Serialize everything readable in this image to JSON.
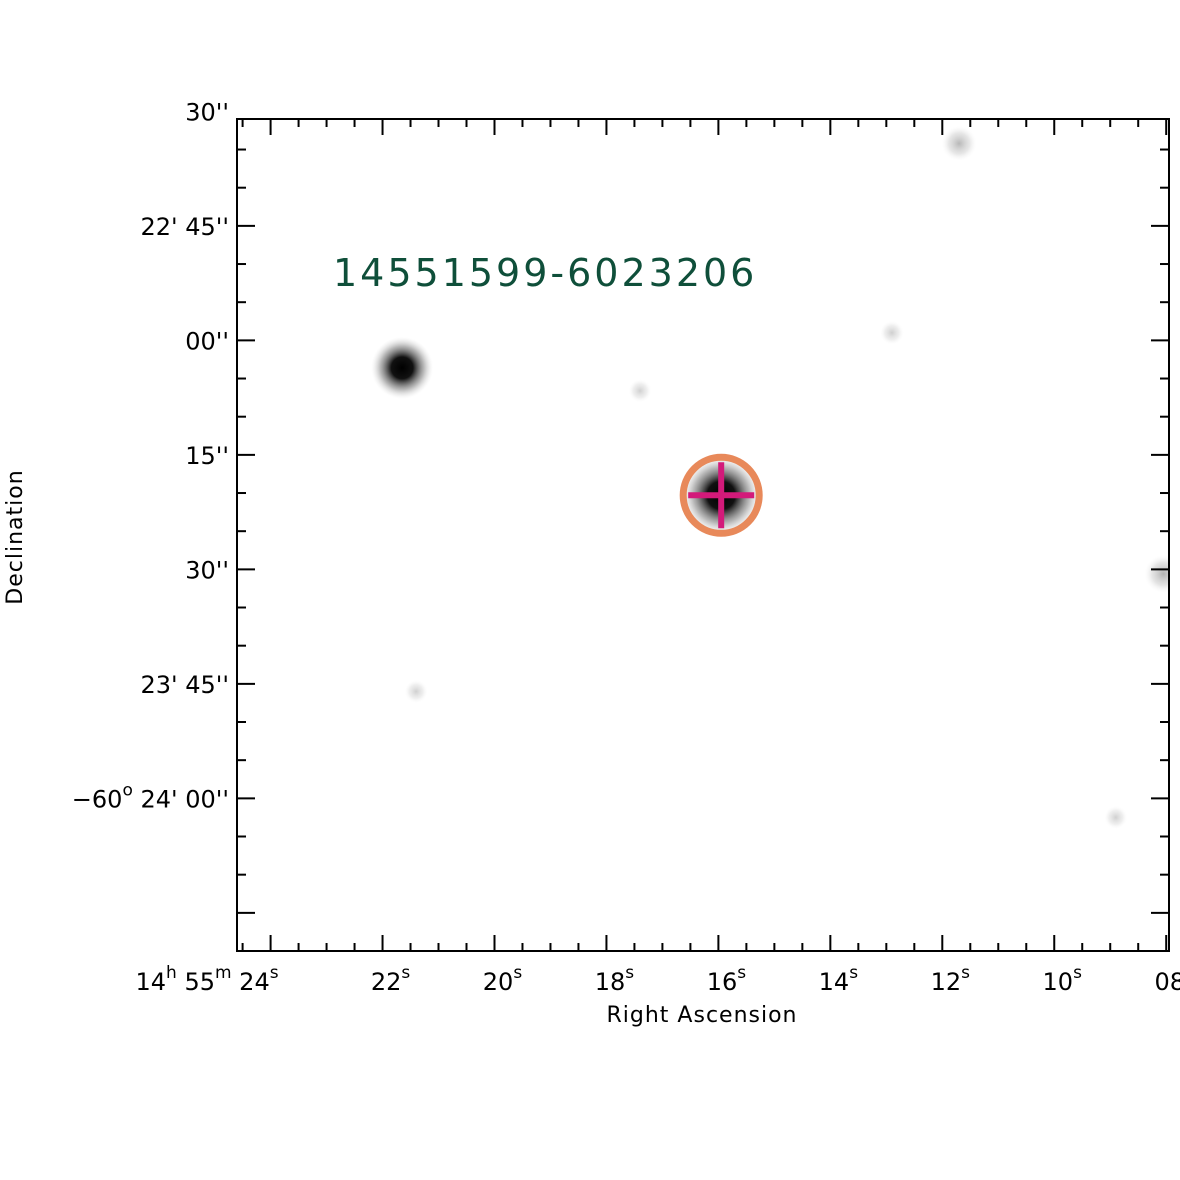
{
  "chart_data": {
    "type": "scatter",
    "title": "",
    "target_label": "14551599-6023206",
    "xlabel": "Right Ascension",
    "ylabel": "Declination",
    "x_units": "seconds of RA past 14h 55m",
    "y_units": "arcseconds from -60° 22' 00\"",
    "xlim": [
      24.6,
      7.95
    ],
    "ylim": [
      140,
      31
    ],
    "x_ticks": [
      {
        "value": 24,
        "label": [
          "14",
          "h",
          " 55",
          "m",
          " 24",
          "s"
        ]
      },
      {
        "value": 22,
        "label": [
          "22",
          "s"
        ]
      },
      {
        "value": 20,
        "label": [
          "20",
          "s"
        ]
      },
      {
        "value": 18,
        "label": [
          "18",
          "s"
        ]
      },
      {
        "value": 16,
        "label": [
          "16",
          "s"
        ]
      },
      {
        "value": 14,
        "label": [
          "14",
          "s"
        ]
      },
      {
        "value": 12,
        "label": [
          "12",
          "s"
        ]
      },
      {
        "value": 10,
        "label": [
          "10",
          "s"
        ]
      },
      {
        "value": 8,
        "label": [
          "08",
          "s"
        ]
      }
    ],
    "y_ticks": [
      {
        "value": 30,
        "label": [
          "30''"
        ]
      },
      {
        "value": 45,
        "label": [
          "22' 45''"
        ]
      },
      {
        "value": 60,
        "label": [
          "00''"
        ]
      },
      {
        "value": 75,
        "label": [
          "15''"
        ]
      },
      {
        "value": 90,
        "label": [
          "30''"
        ]
      },
      {
        "value": 105,
        "label": [
          "23' 45''"
        ]
      },
      {
        "value": 120,
        "label": [
          "−60",
          "o",
          " 24' 00''"
        ]
      }
    ],
    "sources": [
      {
        "ra": 15.95,
        "dec": 80.3,
        "flux": 1.0,
        "role": "target"
      },
      {
        "ra": 21.65,
        "dec": 63.6,
        "flux": 0.7
      },
      {
        "ra": 11.7,
        "dec": 34.2,
        "flux": 0.25
      },
      {
        "ra": 8.05,
        "dec": 90.6,
        "flux": 0.3
      },
      {
        "ra": 12.9,
        "dec": 59.0,
        "flux": 0.06
      },
      {
        "ra": 17.4,
        "dec": 66.6,
        "flux": 0.05
      },
      {
        "ra": 21.4,
        "dec": 106.0,
        "flux": 0.05
      },
      {
        "ra": 8.9,
        "dec": 122.5,
        "flux": 0.05
      }
    ],
    "target_marker": {
      "ra": 15.95,
      "dec": 80.3,
      "circle_color": "#e8895a",
      "cross_color": "#d31a7a"
    },
    "image_grayscale": true
  }
}
